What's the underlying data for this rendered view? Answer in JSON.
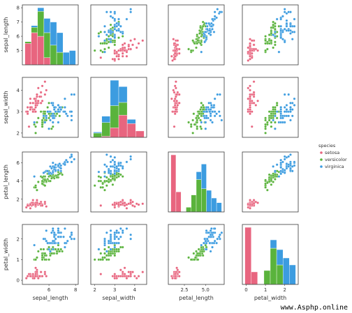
{
  "chart_data": {
    "type": "scatter",
    "subtype": "pairplot",
    "variables": [
      "sepal_length",
      "sepal_width",
      "petal_length",
      "petal_width"
    ],
    "hue": "species",
    "legend": {
      "title": "species",
      "placement": "right",
      "entries": [
        {
          "name": "setosa",
          "color": "#e8657f"
        },
        {
          "name": "versicolor",
          "color": "#5ab33c"
        },
        {
          "name": "virginica",
          "color": "#3c9ce0"
        }
      ]
    },
    "grid": false,
    "axis_ranges": {
      "sepal_length": [
        4.0,
        8.2
      ],
      "sepal_width": [
        1.8,
        4.6
      ],
      "petal_length": [
        0.6,
        7.2
      ],
      "petal_width": [
        -0.2,
        2.7
      ]
    },
    "y_ticks": {
      "sepal_length": [
        5,
        6,
        7,
        8
      ],
      "sepal_width": [
        2,
        3,
        4
      ],
      "petal_length": [
        2,
        4,
        6
      ],
      "petal_width": [
        0,
        1,
        2
      ]
    },
    "x_ticks": {
      "sepal_length": [
        {
          "v": 6,
          "label": "6"
        },
        {
          "v": 8,
          "label": "8"
        }
      ],
      "sepal_width": [
        {
          "v": 2,
          "label": "2"
        },
        {
          "v": 3,
          "label": "3"
        },
        {
          "v": 4,
          "label": "4"
        }
      ],
      "petal_length": [
        {
          "v": 2.5,
          "label": "2.5"
        },
        {
          "v": 5.0,
          "label": "5.0"
        }
      ],
      "petal_width": [
        {
          "v": 0,
          "label": "0"
        },
        {
          "v": 1,
          "label": "1"
        },
        {
          "v": 2,
          "label": "2"
        }
      ]
    },
    "histograms": {
      "sepal_length": {
        "bins": [
          4.3,
          4.75,
          5.2,
          5.65,
          6.1,
          6.55,
          7.0,
          7.45,
          7.9
        ],
        "counts": {
          "setosa": [
            12,
            18,
            16,
            4,
            0,
            0,
            0,
            0
          ],
          "versicolor": [
            1,
            3,
            14,
            14,
            11,
            7,
            0,
            0
          ],
          "virginica": [
            0,
            1,
            2,
            8,
            13,
            11,
            7,
            8
          ]
        }
      },
      "sepal_width": {
        "bins": [
          2.0,
          2.4,
          2.8,
          3.2,
          3.6,
          4.0,
          4.4
        ],
        "counts": {
          "setosa": [
            0,
            1,
            9,
            21,
            13,
            6
          ],
          "versicolor": [
            4,
            13,
            21,
            12,
            0,
            0
          ],
          "virginica": [
            1,
            6,
            24,
            15,
            4,
            0
          ]
        }
      },
      "petal_length": {
        "bins": [
          1.0,
          1.6,
          2.2,
          2.8,
          3.4,
          4.0,
          4.6,
          5.2,
          5.8,
          6.4,
          7.0
        ],
        "counts": {
          "setosa": [
            37,
            13,
            0,
            0,
            0,
            0,
            0,
            0,
            0,
            0
          ],
          "versicolor": [
            0,
            0,
            0,
            3,
            11,
            21,
            15,
            0,
            0,
            0
          ],
          "virginica": [
            0,
            0,
            0,
            0,
            0,
            5,
            16,
            14,
            9,
            6
          ]
        }
      },
      "petal_width": {
        "bins": [
          0.1,
          0.4,
          0.7,
          1.0,
          1.3,
          1.6,
          1.9,
          2.2,
          2.5
        ],
        "counts": {
          "setosa": [
            41,
            9,
            0,
            0,
            0,
            0,
            0,
            0
          ],
          "versicolor": [
            0,
            0,
            0,
            10,
            26,
            14,
            0,
            0
          ],
          "virginica": [
            0,
            0,
            0,
            0,
            6,
            11,
            19,
            14
          ]
        }
      }
    },
    "points": {
      "setosa": {
        "sepal_length": [
          5.1,
          4.9,
          4.7,
          4.6,
          5.0,
          5.4,
          4.6,
          5.0,
          4.4,
          4.9,
          5.4,
          4.8,
          4.8,
          4.3,
          5.8,
          5.7,
          5.4,
          5.1,
          5.7,
          5.1,
          5.4,
          5.1,
          4.6,
          5.1,
          4.8,
          5.0,
          5.0,
          5.2,
          5.2,
          4.7,
          4.8,
          5.4,
          5.2,
          5.5,
          4.9,
          5.0,
          5.5,
          4.9,
          4.4,
          5.1,
          5.0,
          4.5,
          4.4,
          5.0,
          5.1,
          4.8,
          5.1,
          4.6,
          5.3,
          5.0
        ],
        "sepal_width": [
          3.5,
          3.0,
          3.2,
          3.1,
          3.6,
          3.9,
          3.4,
          3.4,
          2.9,
          3.1,
          3.7,
          3.4,
          3.0,
          3.0,
          4.0,
          4.4,
          3.9,
          3.5,
          3.8,
          3.8,
          3.4,
          3.7,
          3.6,
          3.3,
          3.4,
          3.0,
          3.4,
          3.5,
          3.4,
          3.2,
          3.1,
          3.4,
          4.1,
          4.2,
          3.1,
          3.2,
          3.5,
          3.6,
          3.0,
          3.4,
          3.5,
          2.3,
          3.2,
          3.5,
          3.8,
          3.0,
          3.8,
          3.2,
          3.7,
          3.3
        ],
        "petal_length": [
          1.4,
          1.4,
          1.3,
          1.5,
          1.4,
          1.7,
          1.4,
          1.5,
          1.4,
          1.5,
          1.5,
          1.6,
          1.4,
          1.1,
          1.2,
          1.5,
          1.3,
          1.4,
          1.7,
          1.5,
          1.7,
          1.5,
          1.0,
          1.7,
          1.9,
          1.6,
          1.6,
          1.5,
          1.4,
          1.6,
          1.6,
          1.5,
          1.5,
          1.4,
          1.5,
          1.2,
          1.3,
          1.4,
          1.3,
          1.5,
          1.3,
          1.3,
          1.3,
          1.6,
          1.9,
          1.4,
          1.6,
          1.4,
          1.5,
          1.4
        ],
        "petal_width": [
          0.2,
          0.2,
          0.2,
          0.2,
          0.2,
          0.4,
          0.3,
          0.2,
          0.2,
          0.1,
          0.2,
          0.2,
          0.1,
          0.1,
          0.2,
          0.4,
          0.4,
          0.3,
          0.3,
          0.3,
          0.2,
          0.4,
          0.2,
          0.5,
          0.2,
          0.2,
          0.4,
          0.2,
          0.2,
          0.2,
          0.2,
          0.4,
          0.1,
          0.2,
          0.2,
          0.2,
          0.2,
          0.1,
          0.2,
          0.2,
          0.3,
          0.3,
          0.2,
          0.6,
          0.4,
          0.3,
          0.2,
          0.2,
          0.2,
          0.2
        ]
      },
      "versicolor": {
        "sepal_length": [
          7.0,
          6.4,
          6.9,
          5.5,
          6.5,
          5.7,
          6.3,
          4.9,
          6.6,
          5.2,
          5.0,
          5.9,
          6.0,
          6.1,
          5.6,
          6.7,
          5.6,
          5.8,
          6.2,
          5.6,
          5.9,
          6.1,
          6.3,
          6.1,
          6.4,
          6.6,
          6.8,
          6.7,
          6.0,
          5.7,
          5.5,
          5.5,
          5.8,
          6.0,
          5.4,
          6.0,
          6.7,
          6.3,
          5.6,
          5.5,
          5.5,
          6.1,
          5.8,
          5.0,
          5.6,
          5.7,
          5.7,
          6.2,
          5.1,
          5.7
        ],
        "sepal_width": [
          3.2,
          3.2,
          3.1,
          2.3,
          2.8,
          2.8,
          3.3,
          2.4,
          2.9,
          2.7,
          2.0,
          3.0,
          2.2,
          2.9,
          2.9,
          3.1,
          3.0,
          2.7,
          2.2,
          2.5,
          3.2,
          2.8,
          2.5,
          2.8,
          2.9,
          3.0,
          2.8,
          3.0,
          2.9,
          2.6,
          2.4,
          2.4,
          2.7,
          2.7,
          3.0,
          3.4,
          3.1,
          2.3,
          3.0,
          2.5,
          2.6,
          3.0,
          2.6,
          2.3,
          2.7,
          3.0,
          2.9,
          2.9,
          2.5,
          2.8
        ],
        "petal_length": [
          4.7,
          4.5,
          4.9,
          4.0,
          4.6,
          4.5,
          4.7,
          3.3,
          4.6,
          3.9,
          3.5,
          4.2,
          4.0,
          4.7,
          3.6,
          4.4,
          4.5,
          4.1,
          4.5,
          3.9,
          4.8,
          4.0,
          4.9,
          4.7,
          4.3,
          4.4,
          4.8,
          5.0,
          4.5,
          3.5,
          3.8,
          3.7,
          3.9,
          5.1,
          4.5,
          4.5,
          4.7,
          4.4,
          4.1,
          4.0,
          4.4,
          4.6,
          4.0,
          3.3,
          4.2,
          4.2,
          4.2,
          4.3,
          3.0,
          4.1
        ],
        "petal_width": [
          1.4,
          1.5,
          1.5,
          1.3,
          1.5,
          1.3,
          1.6,
          1.0,
          1.3,
          1.4,
          1.0,
          1.5,
          1.0,
          1.4,
          1.3,
          1.4,
          1.5,
          1.0,
          1.5,
          1.1,
          1.8,
          1.3,
          1.5,
          1.2,
          1.3,
          1.4,
          1.4,
          1.7,
          1.5,
          1.0,
          1.1,
          1.0,
          1.2,
          1.6,
          1.5,
          1.6,
          1.5,
          1.3,
          1.3,
          1.3,
          1.2,
          1.4,
          1.2,
          1.0,
          1.3,
          1.2,
          1.3,
          1.3,
          1.1,
          1.3
        ]
      },
      "virginica": {
        "sepal_length": [
          6.3,
          5.8,
          7.1,
          6.3,
          6.5,
          7.6,
          4.9,
          7.3,
          6.7,
          7.2,
          6.5,
          6.4,
          6.8,
          5.7,
          5.8,
          6.4,
          6.5,
          7.7,
          7.7,
          6.0,
          6.9,
          5.6,
          7.7,
          6.3,
          6.7,
          7.2,
          6.2,
          6.1,
          6.4,
          7.2,
          7.4,
          7.9,
          6.4,
          6.3,
          6.1,
          7.7,
          6.3,
          6.4,
          6.0,
          6.9,
          6.7,
          6.9,
          5.8,
          6.8,
          6.7,
          6.7,
          6.3,
          6.5,
          6.2,
          5.9
        ],
        "sepal_width": [
          3.3,
          2.7,
          3.0,
          2.9,
          3.0,
          3.0,
          2.5,
          2.9,
          2.5,
          3.6,
          3.2,
          2.7,
          3.0,
          2.5,
          2.8,
          3.2,
          3.0,
          3.8,
          2.6,
          2.2,
          3.2,
          2.8,
          2.8,
          2.7,
          3.3,
          3.2,
          2.8,
          3.0,
          2.8,
          3.0,
          2.8,
          3.8,
          2.8,
          2.8,
          2.6,
          3.0,
          3.4,
          3.1,
          3.0,
          3.1,
          3.1,
          3.1,
          2.7,
          3.2,
          3.3,
          3.0,
          2.5,
          3.0,
          3.4,
          3.0
        ],
        "petal_length": [
          6.0,
          5.1,
          5.9,
          5.6,
          5.8,
          6.6,
          4.5,
          6.3,
          5.8,
          6.1,
          5.1,
          5.3,
          5.5,
          5.0,
          5.1,
          5.3,
          5.5,
          6.7,
          6.9,
          5.0,
          5.7,
          4.9,
          6.7,
          4.9,
          5.7,
          6.0,
          4.8,
          4.9,
          5.6,
          5.8,
          6.1,
          6.4,
          5.6,
          5.1,
          5.6,
          6.1,
          5.6,
          5.5,
          4.8,
          5.4,
          5.6,
          5.1,
          5.1,
          5.9,
          5.7,
          5.2,
          5.0,
          5.2,
          5.4,
          5.1
        ],
        "petal_width": [
          2.5,
          1.9,
          2.1,
          1.8,
          2.2,
          2.1,
          1.7,
          1.8,
          1.8,
          2.5,
          2.0,
          1.9,
          2.1,
          2.0,
          2.4,
          2.3,
          1.8,
          2.2,
          2.3,
          1.5,
          2.3,
          2.0,
          2.0,
          1.8,
          2.1,
          1.8,
          1.8,
          1.8,
          2.1,
          1.6,
          1.9,
          2.0,
          2.2,
          1.5,
          1.4,
          2.3,
          2.4,
          1.8,
          1.8,
          2.1,
          2.4,
          2.3,
          1.9,
          2.3,
          2.5,
          2.3,
          1.9,
          2.0,
          2.3,
          1.8
        ]
      }
    }
  },
  "watermark": "www.Asphp.online"
}
